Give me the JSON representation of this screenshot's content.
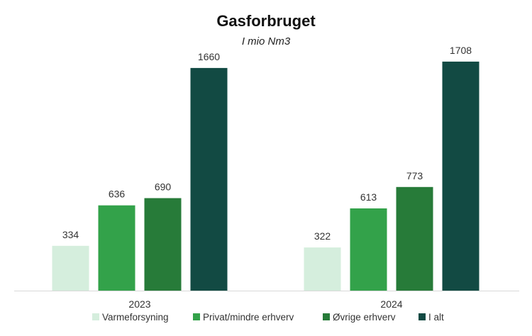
{
  "chart_data": {
    "type": "bar",
    "title": "Gasforbruget",
    "subtitle": "I mio Nm3",
    "xlabel": "",
    "ylabel": "",
    "categories": [
      "2023",
      "2024"
    ],
    "series": [
      {
        "name": "Varmeforsyning",
        "values": [
          334,
          322
        ],
        "color": "#d5eedd"
      },
      {
        "name": "Privat/mindre erhverv",
        "values": [
          636,
          613
        ],
        "color": "#33a24a"
      },
      {
        "name": "Øvrige erhverv",
        "values": [
          690,
          773
        ],
        "color": "#277b39"
      },
      {
        "name": "I alt",
        "values": [
          1660,
          1708
        ],
        "color": "#124a43"
      }
    ],
    "ylim": [
      0,
      1850
    ],
    "grid": false,
    "legend": "bottom",
    "axis_color": "#d9d9d9"
  }
}
